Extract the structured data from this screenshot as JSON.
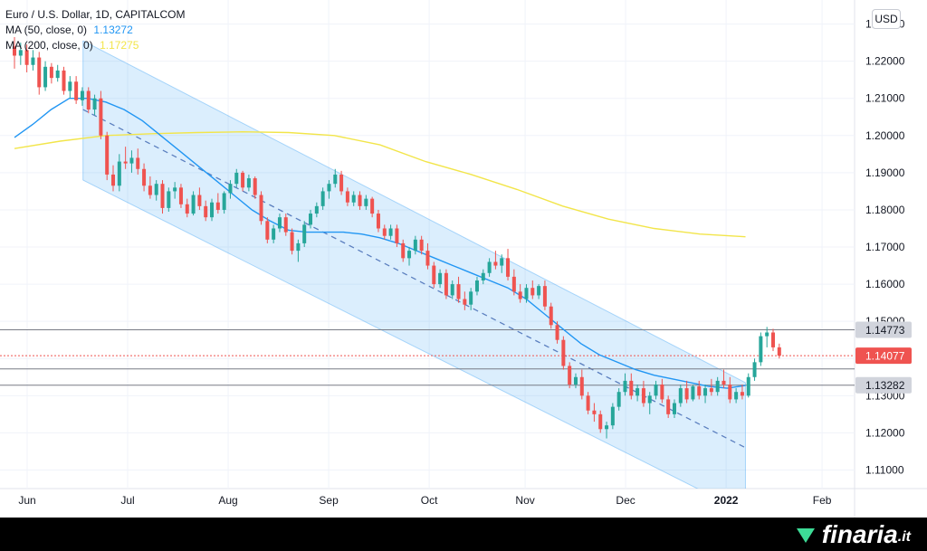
{
  "chart_data": {
    "type": "candlestick",
    "title": "Euro / U.S. Dollar, 1D, CAPITALCOM",
    "indicators": [
      {
        "label": "MA (50, close, 0)",
        "value": "1.13272",
        "color": "#2196f3"
      },
      {
        "label": "MA (200, close, 0)",
        "value": "1.17275",
        "color": "#f2e54a"
      }
    ],
    "currency": "USD",
    "ylim": [
      1.105,
      1.2355
    ],
    "y_ticks": [
      "1.23000",
      "1.22000",
      "1.21000",
      "1.20000",
      "1.19000",
      "1.18000",
      "1.17000",
      "1.16000",
      "1.15000",
      "1.14000",
      "1.13000",
      "1.12000",
      "1.11000"
    ],
    "x_labels": [
      {
        "label": "Jun",
        "day": 0
      },
      {
        "label": "Jul",
        "day": 22
      },
      {
        "label": "Aug",
        "day": 44
      },
      {
        "label": "Sep",
        "day": 66
      },
      {
        "label": "Oct",
        "day": 88
      },
      {
        "label": "Nov",
        "day": 109
      },
      {
        "label": "Dec",
        "day": 131
      },
      {
        "label": "2022",
        "day": 153,
        "bold": true
      },
      {
        "label": "Feb",
        "day": 174
      }
    ],
    "price_levels": [
      {
        "value": 1.14773,
        "label": "1.14773",
        "style": "line"
      },
      {
        "value": 1.14077,
        "label": "1.14077",
        "style": "current"
      },
      {
        "value": 1.13282,
        "label": "1.13282",
        "style": "line"
      },
      {
        "value": 1.1372,
        "label": "",
        "style": "line"
      }
    ],
    "channel": {
      "start_day": 15,
      "end_day": 160,
      "upper": [
        1.2255,
        1.1335
      ],
      "mid": [
        1.207,
        1.116
      ],
      "lower": [
        1.188,
        1.0985
      ]
    },
    "ma50": [
      [
        0,
        1.1995
      ],
      [
        4,
        1.203
      ],
      [
        8,
        1.207
      ],
      [
        12,
        1.21
      ],
      [
        16,
        1.21
      ],
      [
        20,
        1.209
      ],
      [
        24,
        1.207
      ],
      [
        28,
        1.204
      ],
      [
        32,
        1.2
      ],
      [
        36,
        1.196
      ],
      [
        40,
        1.192
      ],
      [
        44,
        1.188
      ],
      [
        48,
        1.184
      ],
      [
        52,
        1.18
      ],
      [
        56,
        1.177
      ],
      [
        60,
        1.1745
      ],
      [
        64,
        1.174
      ],
      [
        68,
        1.174
      ],
      [
        72,
        1.174
      ],
      [
        76,
        1.1735
      ],
      [
        80,
        1.1725
      ],
      [
        84,
        1.171
      ],
      [
        88,
        1.169
      ],
      [
        92,
        1.167
      ],
      [
        96,
        1.165
      ],
      [
        100,
        1.163
      ],
      [
        104,
        1.161
      ],
      [
        108,
        1.159
      ],
      [
        112,
        1.156
      ],
      [
        116,
        1.152
      ],
      [
        120,
        1.148
      ],
      [
        124,
        1.144
      ],
      [
        128,
        1.141
      ],
      [
        132,
        1.139
      ],
      [
        136,
        1.137
      ],
      [
        140,
        1.1355
      ],
      [
        144,
        1.1345
      ],
      [
        148,
        1.1335
      ],
      [
        152,
        1.1325
      ],
      [
        156,
        1.132
      ],
      [
        160,
        1.13272
      ]
    ],
    "ma200": [
      [
        0,
        1.1965
      ],
      [
        10,
        1.1985
      ],
      [
        20,
        1.2
      ],
      [
        30,
        1.2005
      ],
      [
        40,
        1.2008
      ],
      [
        50,
        1.201
      ],
      [
        60,
        1.2008
      ],
      [
        70,
        1.2
      ],
      [
        80,
        1.1975
      ],
      [
        90,
        1.193
      ],
      [
        100,
        1.1895
      ],
      [
        110,
        1.1855
      ],
      [
        120,
        1.181
      ],
      [
        130,
        1.1775
      ],
      [
        140,
        1.175
      ],
      [
        150,
        1.1735
      ],
      [
        160,
        1.17275
      ]
    ],
    "candles": [
      [
        1.224,
        1.2265,
        1.218,
        1.2215
      ],
      [
        1.2215,
        1.225,
        1.219,
        1.223
      ],
      [
        1.223,
        1.2245,
        1.217,
        1.219
      ],
      [
        1.219,
        1.223,
        1.2175,
        1.221
      ],
      [
        1.221,
        1.2225,
        1.211,
        1.213
      ],
      [
        1.213,
        1.22,
        1.212,
        1.2185
      ],
      [
        1.2185,
        1.2195,
        1.214,
        1.2155
      ],
      [
        1.2155,
        1.219,
        1.2145,
        1.2175
      ],
      [
        1.2175,
        1.2185,
        1.211,
        1.212
      ],
      [
        1.212,
        1.216,
        1.21,
        1.2145
      ],
      [
        1.2145,
        1.216,
        1.2085,
        1.2095
      ],
      [
        1.2095,
        1.213,
        1.208,
        1.212
      ],
      [
        1.212,
        1.213,
        1.206,
        1.207
      ],
      [
        1.207,
        1.211,
        1.2055,
        1.21
      ],
      [
        1.21,
        1.212,
        1.199,
        1.2
      ],
      [
        1.2,
        1.201,
        1.188,
        1.1895
      ],
      [
        1.1895,
        1.192,
        1.185,
        1.1865
      ],
      [
        1.1865,
        1.195,
        1.185,
        1.193
      ],
      [
        1.193,
        1.197,
        1.191,
        1.1925
      ],
      [
        1.1925,
        1.196,
        1.19,
        1.194
      ],
      [
        1.194,
        1.1965,
        1.1895,
        1.191
      ],
      [
        1.191,
        1.1925,
        1.185,
        1.1865
      ],
      [
        1.1865,
        1.189,
        1.183,
        1.184
      ],
      [
        1.184,
        1.188,
        1.1825,
        1.187
      ],
      [
        1.187,
        1.188,
        1.179,
        1.1805
      ],
      [
        1.1805,
        1.186,
        1.1795,
        1.185
      ],
      [
        1.185,
        1.1875,
        1.183,
        1.186
      ],
      [
        1.186,
        1.187,
        1.1805,
        1.1815
      ],
      [
        1.1815,
        1.183,
        1.178,
        1.179
      ],
      [
        1.179,
        1.185,
        1.1785,
        1.184
      ],
      [
        1.184,
        1.186,
        1.18,
        1.181
      ],
      [
        1.181,
        1.1825,
        1.177,
        1.178
      ],
      [
        1.178,
        1.183,
        1.177,
        1.182
      ],
      [
        1.182,
        1.1845,
        1.179,
        1.18
      ],
      [
        1.18,
        1.185,
        1.179,
        1.1845
      ],
      [
        1.1845,
        1.188,
        1.183,
        1.187
      ],
      [
        1.187,
        1.191,
        1.186,
        1.19
      ],
      [
        1.19,
        1.1905,
        1.185,
        1.186
      ],
      [
        1.186,
        1.1895,
        1.185,
        1.1885
      ],
      [
        1.1885,
        1.189,
        1.183,
        1.184
      ],
      [
        1.184,
        1.185,
        1.176,
        1.177
      ],
      [
        1.177,
        1.178,
        1.171,
        1.172
      ],
      [
        1.172,
        1.176,
        1.171,
        1.175
      ],
      [
        1.175,
        1.179,
        1.174,
        1.178
      ],
      [
        1.178,
        1.179,
        1.173,
        1.174
      ],
      [
        1.174,
        1.175,
        1.168,
        1.169
      ],
      [
        1.169,
        1.172,
        1.166,
        1.171
      ],
      [
        1.171,
        1.177,
        1.17,
        1.176
      ],
      [
        1.176,
        1.18,
        1.175,
        1.179
      ],
      [
        1.179,
        1.182,
        1.178,
        1.181
      ],
      [
        1.181,
        1.186,
        1.18,
        1.185
      ],
      [
        1.185,
        1.188,
        1.183,
        1.187
      ],
      [
        1.187,
        1.191,
        1.186,
        1.1895
      ],
      [
        1.1895,
        1.1905,
        1.184,
        1.185
      ],
      [
        1.185,
        1.186,
        1.181,
        1.182
      ],
      [
        1.182,
        1.185,
        1.181,
        1.184
      ],
      [
        1.184,
        1.185,
        1.18,
        1.181
      ],
      [
        1.181,
        1.184,
        1.18,
        1.183
      ],
      [
        1.183,
        1.1835,
        1.178,
        1.179
      ],
      [
        1.179,
        1.18,
        1.174,
        1.175
      ],
      [
        1.175,
        1.176,
        1.172,
        1.173
      ],
      [
        1.173,
        1.176,
        1.172,
        1.175
      ],
      [
        1.175,
        1.176,
        1.17,
        1.171
      ],
      [
        1.171,
        1.172,
        1.166,
        1.167
      ],
      [
        1.167,
        1.17,
        1.165,
        1.169
      ],
      [
        1.169,
        1.173,
        1.168,
        1.172
      ],
      [
        1.172,
        1.173,
        1.168,
        1.169
      ],
      [
        1.169,
        1.171,
        1.164,
        1.165
      ],
      [
        1.165,
        1.166,
        1.159,
        1.16
      ],
      [
        1.16,
        1.164,
        1.159,
        1.163
      ],
      [
        1.163,
        1.164,
        1.156,
        1.157
      ],
      [
        1.157,
        1.161,
        1.156,
        1.16
      ],
      [
        1.16,
        1.162,
        1.155,
        1.156
      ],
      [
        1.156,
        1.158,
        1.153,
        1.1545
      ],
      [
        1.1545,
        1.159,
        1.153,
        1.158
      ],
      [
        1.158,
        1.162,
        1.157,
        1.161
      ],
      [
        1.161,
        1.164,
        1.16,
        1.163
      ],
      [
        1.163,
        1.167,
        1.162,
        1.166
      ],
      [
        1.166,
        1.169,
        1.164,
        1.165
      ],
      [
        1.165,
        1.168,
        1.163,
        1.167
      ],
      [
        1.167,
        1.1695,
        1.161,
        1.162
      ],
      [
        1.162,
        1.164,
        1.157,
        1.158
      ],
      [
        1.158,
        1.16,
        1.155,
        1.156
      ],
      [
        1.156,
        1.16,
        1.155,
        1.159
      ],
      [
        1.159,
        1.161,
        1.156,
        1.157
      ],
      [
        1.157,
        1.16,
        1.156,
        1.1595
      ],
      [
        1.1595,
        1.161,
        1.153,
        1.154
      ],
      [
        1.154,
        1.155,
        1.148,
        1.149
      ],
      [
        1.149,
        1.15,
        1.144,
        1.145
      ],
      [
        1.145,
        1.146,
        1.137,
        1.138
      ],
      [
        1.138,
        1.139,
        1.132,
        1.133
      ],
      [
        1.133,
        1.136,
        1.132,
        1.135
      ],
      [
        1.135,
        1.137,
        1.129,
        1.13
      ],
      [
        1.13,
        1.131,
        1.125,
        1.126
      ],
      [
        1.126,
        1.128,
        1.123,
        1.125
      ],
      [
        1.125,
        1.126,
        1.12,
        1.121
      ],
      [
        1.121,
        1.123,
        1.1185,
        1.122
      ],
      [
        1.122,
        1.128,
        1.121,
        1.127
      ],
      [
        1.127,
        1.132,
        1.126,
        1.131
      ],
      [
        1.131,
        1.136,
        1.13,
        1.134
      ],
      [
        1.134,
        1.136,
        1.129,
        1.13
      ],
      [
        1.13,
        1.133,
        1.1285,
        1.132
      ],
      [
        1.132,
        1.134,
        1.127,
        1.128
      ],
      [
        1.128,
        1.131,
        1.125,
        1.13
      ],
      [
        1.13,
        1.134,
        1.129,
        1.133
      ],
      [
        1.133,
        1.1345,
        1.128,
        1.129
      ],
      [
        1.129,
        1.13,
        1.124,
        1.125
      ],
      [
        1.125,
        1.129,
        1.124,
        1.128
      ],
      [
        1.128,
        1.133,
        1.127,
        1.132
      ],
      [
        1.132,
        1.134,
        1.128,
        1.129
      ],
      [
        1.129,
        1.133,
        1.1285,
        1.1325
      ],
      [
        1.1325,
        1.134,
        1.129,
        1.13
      ],
      [
        1.13,
        1.133,
        1.128,
        1.132
      ],
      [
        1.132,
        1.1345,
        1.13,
        1.131
      ],
      [
        1.131,
        1.135,
        1.13,
        1.134
      ],
      [
        1.134,
        1.137,
        1.132,
        1.133
      ],
      [
        1.133,
        1.135,
        1.128,
        1.129
      ],
      [
        1.129,
        1.132,
        1.128,
        1.131
      ],
      [
        1.131,
        1.133,
        1.129,
        1.13
      ],
      [
        1.13,
        1.136,
        1.1295,
        1.135
      ],
      [
        1.135,
        1.14,
        1.134,
        1.139
      ],
      [
        1.139,
        1.147,
        1.138,
        1.146
      ],
      [
        1.146,
        1.1485,
        1.143,
        1.147
      ],
      [
        1.147,
        1.148,
        1.142,
        1.143
      ],
      [
        1.143,
        1.144,
        1.14,
        1.14077
      ]
    ],
    "candle_start_day": 0,
    "candle_step_days": 1.35
  },
  "footer": {
    "brand": "finaria",
    "tld": ".it"
  }
}
